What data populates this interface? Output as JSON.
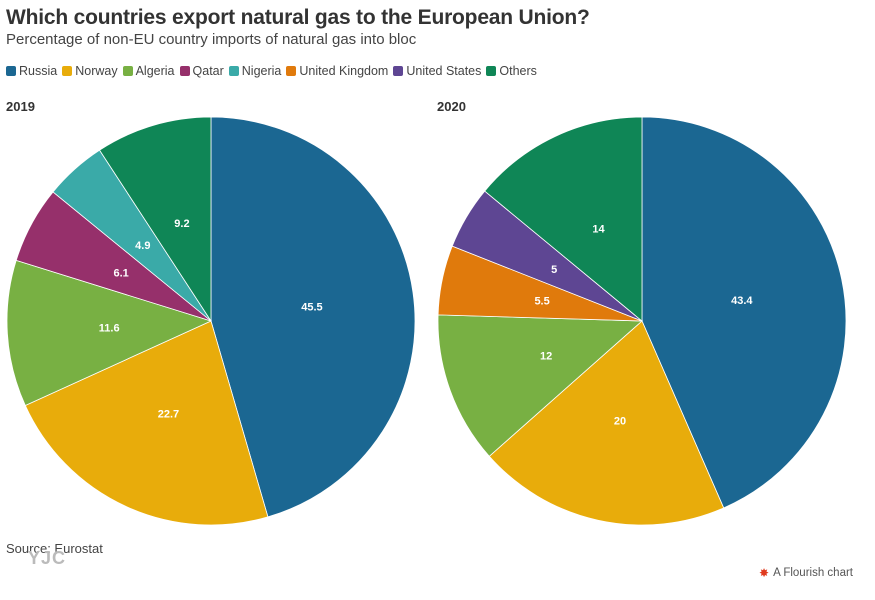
{
  "title": "Which countries export natural gas to the European Union?",
  "subtitle": "Percentage of non-EU country imports of natural gas into bloc",
  "legend": [
    {
      "label": "Russia",
      "color": "#1b6792"
    },
    {
      "label": "Norway",
      "color": "#e8ac0b"
    },
    {
      "label": "Algeria",
      "color": "#78b043"
    },
    {
      "label": "Qatar",
      "color": "#96306b"
    },
    {
      "label": "Nigeria",
      "color": "#3aaaa8"
    },
    {
      "label": "United Kingdom",
      "color": "#e07a0c"
    },
    {
      "label": "United States",
      "color": "#5e4693"
    },
    {
      "label": "Others",
      "color": "#0f8656"
    }
  ],
  "chart_data": [
    {
      "type": "pie",
      "title": "2019",
      "categories": [
        "Russia",
        "Norway",
        "Algeria",
        "Qatar",
        "Nigeria",
        "Others"
      ],
      "values": [
        45.5,
        22.7,
        11.6,
        6.1,
        4.9,
        9.2
      ],
      "labels": [
        "45.5",
        "22.7",
        "11.6",
        "6.1",
        "4.9",
        "9.2"
      ]
    },
    {
      "type": "pie",
      "title": "2020",
      "categories": [
        "Russia",
        "Norway",
        "Algeria",
        "United Kingdom",
        "United States",
        "Others"
      ],
      "values": [
        43.4,
        20,
        12,
        5.5,
        5,
        14
      ],
      "labels": [
        "43.4",
        "20",
        "12",
        "5.5",
        "5",
        "14"
      ]
    }
  ],
  "source": "Source: Eurostat",
  "watermark": "YJC",
  "footer": {
    "icon": "flourish-logo-icon",
    "label": "A Flourish chart"
  }
}
